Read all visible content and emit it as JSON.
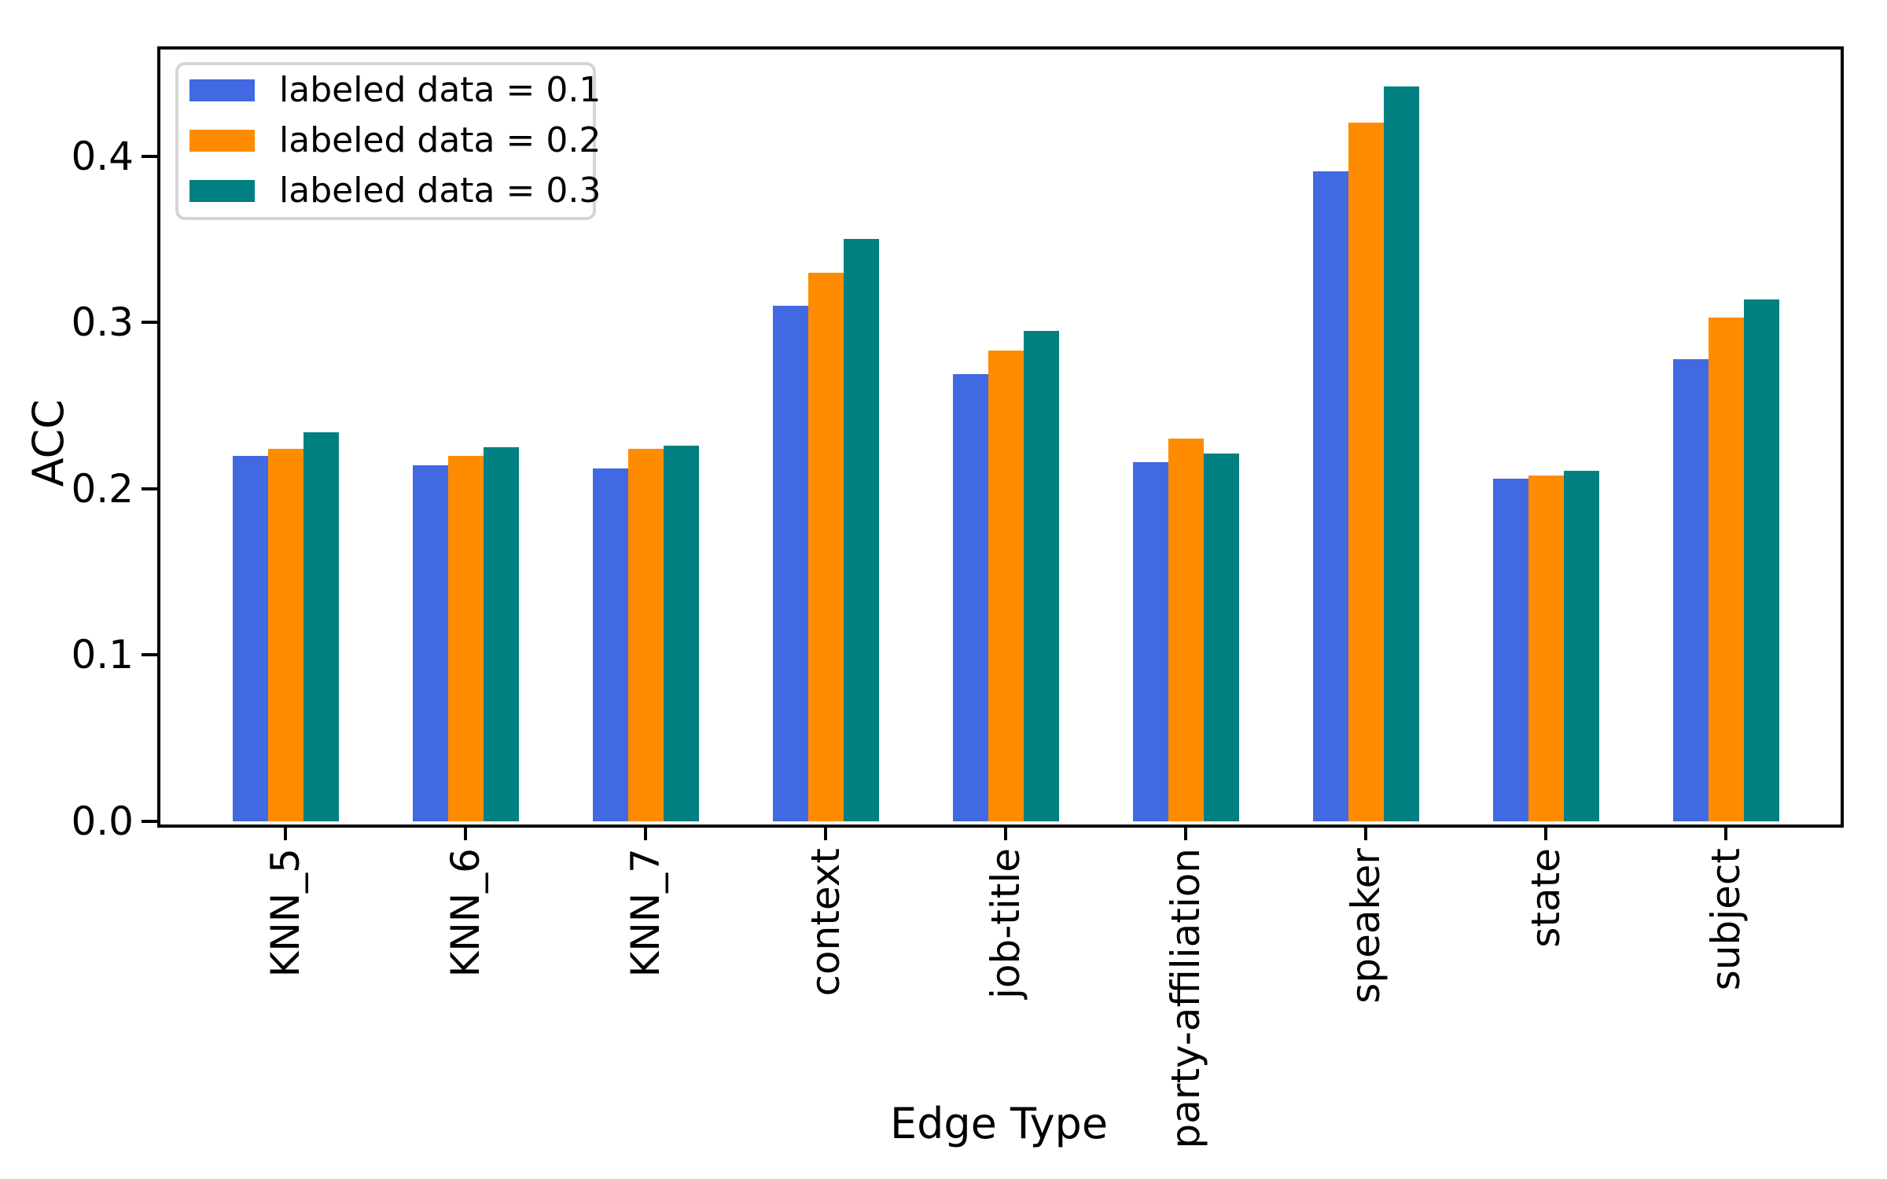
{
  "chart_data": {
    "type": "bar",
    "title": "",
    "xlabel": "Edge Type",
    "ylabel": "ACC",
    "categories": [
      "KNN_5",
      "KNN_6",
      "KNN_7",
      "context",
      "job-title",
      "party-affiliation",
      "speaker",
      "state",
      "subject"
    ],
    "series": [
      {
        "name": "labeled data = 0.1",
        "color": "#4169E1",
        "values": [
          0.22,
          0.214,
          0.212,
          0.31,
          0.269,
          0.216,
          0.391,
          0.206,
          0.278
        ]
      },
      {
        "name": "labeled data = 0.2",
        "color": "#FF8C00",
        "values": [
          0.224,
          0.22,
          0.224,
          0.33,
          0.283,
          0.23,
          0.42,
          0.208,
          0.303
        ]
      },
      {
        "name": "labeled data = 0.3",
        "color": "#008080",
        "values": [
          0.234,
          0.225,
          0.226,
          0.35,
          0.295,
          0.221,
          0.442,
          0.211,
          0.314
        ]
      }
    ],
    "ylim": [
      0,
      0.466
    ],
    "yticks": [
      "0.0",
      "0.1",
      "0.2",
      "0.3",
      "0.4"
    ],
    "xtick_rotation": 90,
    "legend_position": "upper left",
    "grid": false,
    "colors": {
      "axis": "#000000",
      "legend_border": "#d5d5d5",
      "background": "#ffffff"
    }
  }
}
